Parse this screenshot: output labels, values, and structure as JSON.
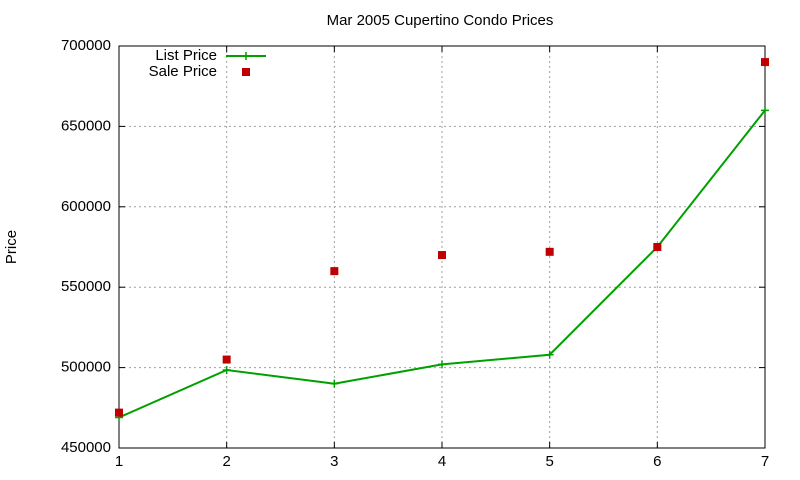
{
  "chart_data": {
    "type": "line",
    "title": "Mar 2005 Cupertino Condo Prices",
    "y_label": "Price",
    "x": [
      1,
      2,
      3,
      4,
      5,
      6,
      7
    ],
    "series": [
      {
        "name": "List Price",
        "color": "#00a000",
        "mode": "lines+points",
        "values": [
          469000,
          498500,
          490000,
          502000,
          508000,
          575000,
          660000
        ]
      },
      {
        "name": "Sale Price",
        "color": "#c00000",
        "mode": "points",
        "values": [
          472000,
          505000,
          560000,
          570000,
          572000,
          575000,
          690000
        ]
      }
    ],
    "xlim": [
      1,
      7
    ],
    "xticks": [
      1,
      2,
      3,
      4,
      5,
      6,
      7
    ],
    "ylim": [
      450000,
      700000
    ],
    "yticks": [
      450000,
      500000,
      550000,
      600000,
      650000,
      700000
    ],
    "grid": true,
    "legend": "top-left"
  }
}
